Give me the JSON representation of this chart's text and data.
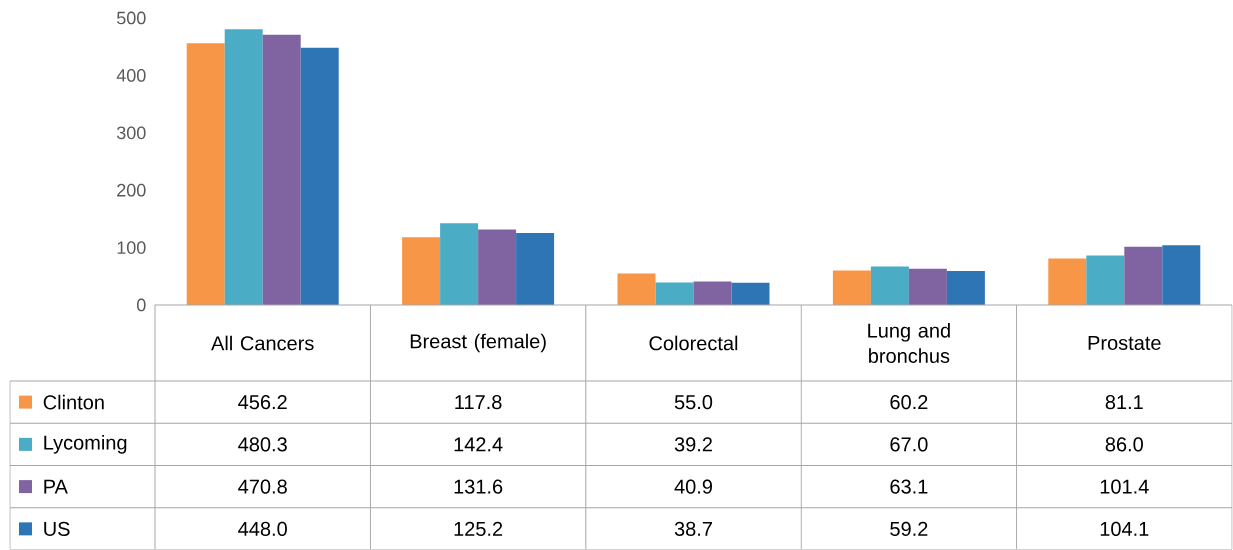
{
  "chart_data": {
    "type": "bar",
    "categories": [
      "All Cancers",
      "Breast (female)",
      "Colorectal",
      "Lung and bronchus",
      "Prostate"
    ],
    "series": [
      {
        "name": "Clinton",
        "color": "#f79646",
        "values": [
          456.2,
          117.8,
          55.0,
          60.2,
          81.1
        ],
        "value_labels": [
          "456.2",
          "117.8",
          "55.0",
          "60.2",
          "81.1"
        ]
      },
      {
        "name": "Lycoming",
        "color": "#4bacc6",
        "values": [
          480.3,
          142.4,
          39.2,
          67.0,
          86.0
        ],
        "value_labels": [
          "480.3",
          "142.4",
          "39.2",
          "67.0",
          "86.0"
        ]
      },
      {
        "name": "PA",
        "color": "#8064a2",
        "values": [
          470.8,
          131.6,
          40.9,
          63.1,
          101.4
        ],
        "value_labels": [
          "470.8",
          "131.6",
          "40.9",
          "63.1",
          "101.4"
        ]
      },
      {
        "name": "US",
        "color": "#2e75b6",
        "values": [
          448.0,
          125.2,
          38.7,
          59.2,
          104.1
        ],
        "value_labels": [
          "448.0",
          "125.2",
          "38.7",
          "59.2",
          "104.1"
        ]
      }
    ],
    "ylim": [
      0,
      500
    ],
    "yticks": [
      0,
      100,
      200,
      300,
      400,
      500
    ],
    "legend": "bottom",
    "grid": false
  }
}
